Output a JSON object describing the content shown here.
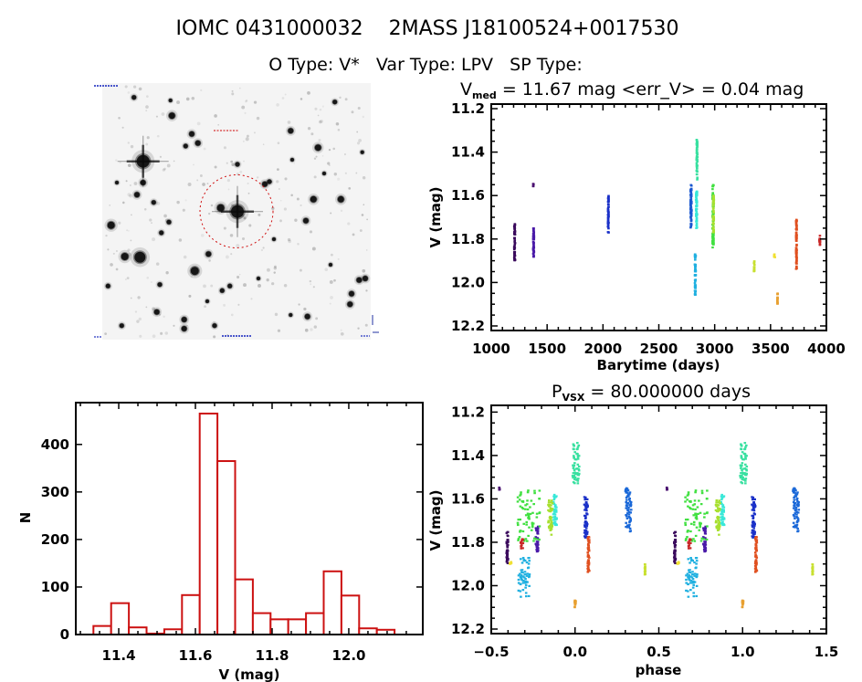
{
  "header": {
    "title": "IOMC 0431000032    2MASS J18100524+0017530",
    "subtitle": "O Type: V*   Var Type: LPV   SP Type:"
  },
  "finder_chart": {
    "background_color": "#f4f4f4",
    "target_circle_color": "#d01010",
    "label_color": "#2030c0"
  },
  "chart_data": [
    {
      "id": "light-curve",
      "type": "scatter",
      "title": {
        "symbol": "V",
        "subscript": "med",
        "text": " = 11.67 mag <err_V> = 0.04 mag"
      },
      "xlabel": "Barytime (days)",
      "ylabel": "V (mag)",
      "xlim": [
        1000,
        4000
      ],
      "ylim": [
        12.221,
        11.179
      ],
      "y_inverted": true,
      "xticks": [
        1000,
        1500,
        2000,
        2500,
        3000,
        3500,
        4000
      ],
      "xtick_labels": [
        "1000",
        "1500",
        "2000",
        "2500",
        "3000",
        "3500",
        "4000"
      ],
      "xminor": 100,
      "yticks": [
        11.2,
        11.4,
        11.6,
        11.8,
        12.0,
        12.2
      ],
      "ytick_labels": [
        "11.2",
        "11.4",
        "11.6",
        "11.8",
        "12.0",
        "12.2"
      ],
      "yminor": 0.05,
      "grid": false,
      "series": [
        {
          "color": "#3a0a5c",
          "t": [
            1205,
            1212
          ],
          "v": [
            11.72,
            11.9
          ]
        },
        {
          "color": "#4a1070",
          "t": [
            1374,
            1378
          ],
          "v": [
            11.545,
            11.56
          ]
        },
        {
          "color": "#4a1aa8",
          "t": [
            1375,
            1382
          ],
          "v": [
            11.74,
            11.89
          ]
        },
        {
          "color": "#1a30c8",
          "t": [
            2044,
            2050
          ],
          "v": [
            11.6,
            11.77
          ]
        },
        {
          "color": "#1a58d0",
          "t": [
            2783,
            2792
          ],
          "v": [
            11.55,
            11.75
          ]
        },
        {
          "color": "#38e8d8",
          "t": [
            2832,
            2842
          ],
          "v": [
            11.58,
            11.75
          ]
        },
        {
          "color": "#38e0a0",
          "t": [
            2838,
            2845
          ],
          "v": [
            11.34,
            11.53
          ]
        },
        {
          "color": "#20b0e0",
          "t": [
            2822,
            2830
          ],
          "v": [
            11.87,
            12.06
          ]
        },
        {
          "color": "#40e040",
          "t": [
            2980,
            2990
          ],
          "v": [
            11.55,
            11.84
          ]
        },
        {
          "color": "#a8e030",
          "t": [
            2985,
            2992
          ],
          "v": [
            11.6,
            11.77
          ]
        },
        {
          "color": "#c8e030",
          "t": [
            3350,
            3356
          ],
          "v": [
            11.9,
            11.95
          ]
        },
        {
          "color": "#f0e030",
          "t": [
            3530,
            3540
          ],
          "v": [
            11.87,
            11.89
          ]
        },
        {
          "color": "#e8a030",
          "t": [
            3560,
            3566
          ],
          "v": [
            12.05,
            12.1
          ]
        },
        {
          "color": "#e05020",
          "t": [
            3728,
            3734
          ],
          "v": [
            11.7,
            11.94
          ]
        },
        {
          "color": "#c82828",
          "t": [
            3936,
            3942
          ],
          "v": [
            11.78,
            11.83
          ]
        }
      ]
    },
    {
      "id": "phase-plot",
      "type": "scatter",
      "title": {
        "symbol": "P",
        "subscript": "VSX",
        "text": " = 80.000000 days"
      },
      "xlabel": "phase",
      "ylabel": "V (mag)",
      "xlim": [
        -0.5,
        1.5
      ],
      "ylim": [
        12.221,
        11.169
      ],
      "y_inverted": true,
      "period_days": 80.0,
      "repeat_cycles": 2,
      "xticks": [
        -0.5,
        0.0,
        0.5,
        1.0,
        1.5
      ],
      "xtick_labels": [
        "−0.5",
        "0.0",
        "0.5",
        "1.0",
        "1.5"
      ],
      "xminor": 0.1,
      "yticks": [
        11.2,
        11.4,
        11.6,
        11.8,
        12.0,
        12.2
      ],
      "ytick_labels": [
        "11.2",
        "11.4",
        "11.6",
        "11.8",
        "12.0",
        "12.2"
      ],
      "yminor": 0.05,
      "grid": false,
      "series": [
        {
          "color": "#3a0a5c",
          "phase": [
            -0.41,
            -0.4
          ],
          "v": [
            11.75,
            11.9
          ]
        },
        {
          "color": "#4a1070",
          "phase": [
            -0.455,
            -0.45
          ],
          "v": [
            11.545,
            11.56
          ]
        },
        {
          "color": "#4a1aa8",
          "phase": [
            -0.235,
            -0.22
          ],
          "v": [
            11.72,
            11.85
          ]
        },
        {
          "color": "#1a30c8",
          "phase": [
            0.055,
            0.075
          ],
          "v": [
            11.59,
            11.78
          ]
        },
        {
          "color": "#1a68d8",
          "phase": [
            0.3,
            0.335
          ],
          "v": [
            11.55,
            11.75
          ]
        },
        {
          "color": "#38e8d8",
          "phase": [
            -0.13,
            -0.11
          ],
          "v": [
            11.58,
            11.72
          ]
        },
        {
          "color": "#38e0a0",
          "phase": [
            -0.015,
            0.025
          ],
          "v": [
            11.34,
            11.53
          ]
        },
        {
          "color": "#20b0e0",
          "phase": [
            -0.34,
            -0.27
          ],
          "v": [
            11.87,
            12.06
          ]
        },
        {
          "color": "#40e040",
          "phase": [
            -0.345,
            -0.21
          ],
          "v": [
            11.56,
            11.8
          ]
        },
        {
          "color": "#a8e030",
          "phase": [
            -0.16,
            -0.135
          ],
          "v": [
            11.6,
            11.77
          ]
        },
        {
          "color": "#c8e030",
          "phase": [
            0.415,
            0.42
          ],
          "v": [
            11.9,
            11.95
          ]
        },
        {
          "color": "#f0e030",
          "phase": [
            -0.39,
            -0.38
          ],
          "v": [
            11.88,
            11.9
          ]
        },
        {
          "color": "#e8a030",
          "phase": [
            -0.003,
            0.003
          ],
          "v": [
            12.05,
            12.1
          ]
        },
        {
          "color": "#e05020",
          "phase": [
            0.075,
            0.085
          ],
          "v": [
            11.77,
            11.94
          ]
        },
        {
          "color": "#c82828",
          "phase": [
            -0.325,
            -0.31
          ],
          "v": [
            11.78,
            11.83
          ]
        }
      ]
    },
    {
      "id": "histogram",
      "type": "bar",
      "xlabel": "V (mag)",
      "ylabel": "N",
      "xlim": [
        11.288,
        12.193
      ],
      "ylim": [
        0,
        488
      ],
      "xticks": [
        11.4,
        11.6,
        11.8,
        12.0
      ],
      "xtick_labels": [
        "11.4",
        "11.6",
        "11.8",
        "12.0"
      ],
      "xminor": 0.05,
      "yticks": [
        0,
        100,
        200,
        300,
        400
      ],
      "ytick_labels": [
        "0",
        "100",
        "200",
        "300",
        "400"
      ],
      "yminor": null,
      "grid": false,
      "bin_start": 11.334,
      "bin_width": 0.0462,
      "values": [
        18,
        66,
        15,
        2,
        11,
        83,
        465,
        365,
        116,
        45,
        32,
        32,
        45,
        133,
        82,
        13,
        10
      ],
      "bar_color": "#cc1111"
    }
  ]
}
